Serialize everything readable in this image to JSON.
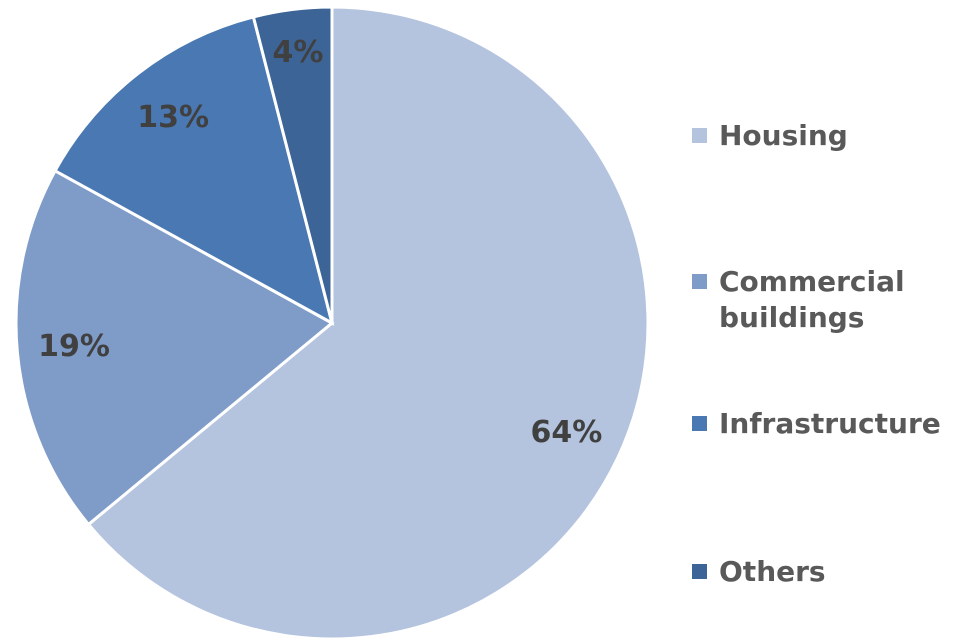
{
  "chart_data": {
    "type": "pie",
    "categories": [
      "Housing",
      "Commercial buildings",
      "Infrastructure",
      "Others"
    ],
    "values": [
      64,
      19,
      13,
      4
    ],
    "value_labels": [
      "64%",
      "19%",
      "13%",
      "4%"
    ],
    "colors": [
      "#b4c3de",
      "#7f9cc9",
      "#4a78b2",
      "#3c6496"
    ],
    "legend": "right"
  }
}
